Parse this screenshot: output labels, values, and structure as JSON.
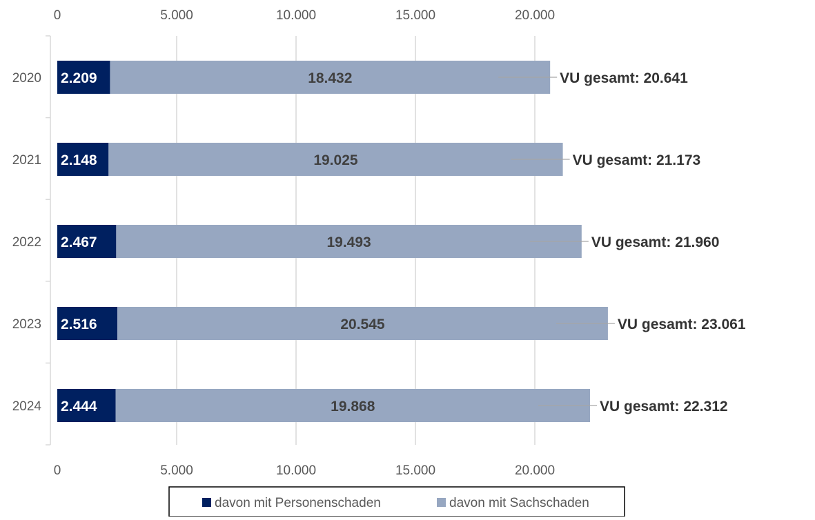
{
  "chart_data": {
    "type": "bar",
    "orientation": "horizontal",
    "stacked": true,
    "title": "",
    "xlabel": "",
    "ylabel": "",
    "categories": [
      "2020",
      "2021",
      "2022",
      "2023",
      "2024"
    ],
    "series": [
      {
        "name": "davon mit Personenschaden",
        "color": "#002060",
        "values": [
          2209,
          2148,
          2467,
          2516,
          2444
        ],
        "labels": [
          "2.209",
          "2.148",
          "2.467",
          "2.516",
          "2.444"
        ],
        "label_color": "#ffffff"
      },
      {
        "name": "davon mit Sachschaden",
        "color": "#97a7c1",
        "values": [
          18432,
          19025,
          19493,
          20545,
          19868
        ],
        "labels": [
          "18.432",
          "19.025",
          "19.493",
          "20.545",
          "19.868"
        ],
        "label_color": "#404040"
      }
    ],
    "totals": {
      "values": [
        20641,
        21173,
        21960,
        23061,
        22312
      ],
      "labels": [
        "VU gesamt: 20.641",
        "VU gesamt: 21.173",
        "VU gesamt: 21.960",
        "VU gesamt: 23.061",
        "VU gesamt: 22.312"
      ]
    },
    "x_ticks": [
      0,
      5000,
      10000,
      15000,
      20000
    ],
    "x_tick_labels": [
      "0",
      "5.000",
      "10.000",
      "15.000",
      "20.000"
    ],
    "xlim": [
      0,
      25000
    ],
    "x_axis_labels_top": true,
    "x_axis_labels_bottom": true,
    "grid": true,
    "legend": "bottom",
    "colors": {
      "gridline": "#d9d9d9",
      "axis_tick_text": "#595959",
      "total_text": "#333333",
      "legend_border": "#000000"
    }
  }
}
